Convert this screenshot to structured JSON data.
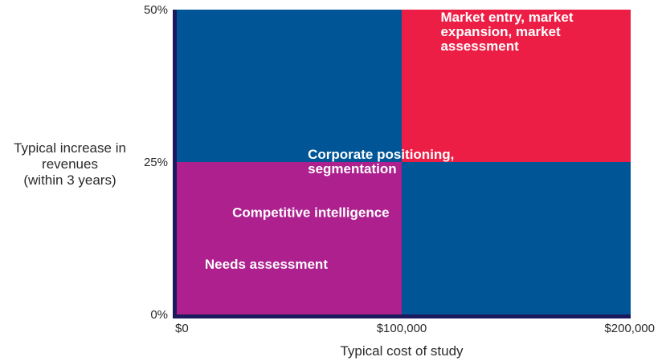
{
  "chart_data": {
    "type": "quadrant",
    "x": {
      "label": "Typical cost of study",
      "ticks": [
        {
          "value": 0,
          "label": "$0"
        },
        {
          "value": 100000,
          "label": "$100,000"
        },
        {
          "value": 200000,
          "label": "$200,000"
        }
      ],
      "range": [
        0,
        200000
      ]
    },
    "y": {
      "label_lines": [
        "Typical increase in",
        "revenues",
        "(within 3 years)"
      ],
      "ticks": [
        {
          "value": 0,
          "label": "0%"
        },
        {
          "value": 25,
          "label": "25%"
        },
        {
          "value": 50,
          "label": "50%"
        }
      ],
      "range": [
        0,
        50
      ]
    },
    "regions": [
      {
        "x": [
          0,
          100000
        ],
        "y": [
          25,
          50
        ],
        "color": "#005596"
      },
      {
        "x": [
          100000,
          200000
        ],
        "y": [
          25,
          50
        ],
        "color": "#ED1E45"
      },
      {
        "x": [
          0,
          100000
        ],
        "y": [
          0,
          25
        ],
        "color": "#AD208E"
      },
      {
        "x": [
          100000,
          200000
        ],
        "y": [
          0,
          25
        ],
        "color": "#005596"
      }
    ],
    "labels": [
      {
        "lines": [
          "Market entry, market",
          "expansion, market",
          "assessment"
        ],
        "x": 117000,
        "y": 48
      },
      {
        "lines": [
          "Corporate positioning,",
          "segmentation"
        ],
        "x": 59000,
        "y": 25.5
      },
      {
        "lines": [
          "Competitive intelligence"
        ],
        "x": 26000,
        "y": 16
      },
      {
        "lines": [
          "Needs assessment"
        ],
        "x": 14000,
        "y": 7.5
      }
    ],
    "axis_color": "#1c1a5e"
  }
}
